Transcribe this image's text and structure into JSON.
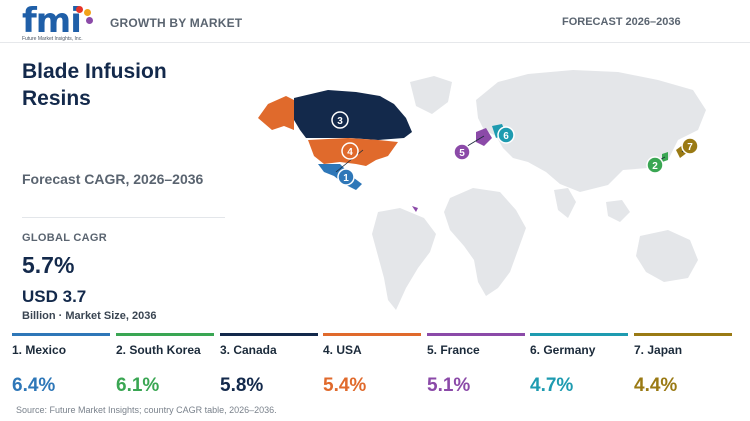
{
  "header": {
    "logo_text": "fmi",
    "logo_sub": "Future Market Insights, Inc.",
    "left": "GROWTH BY MARKET",
    "right": "FORECAST 2026–2036"
  },
  "title": "Blade Infusion Resins",
  "subtitle": "Forecast CAGR, 2026–2036",
  "global_cagr": {
    "label": "GLOBAL CAGR",
    "value": "5.7%"
  },
  "market_size": {
    "value": "USD 3.7",
    "label": "Billion · Market Size, 2036"
  },
  "countries": [
    {
      "rank": "1",
      "name": "1. Mexico",
      "cagr": "6.4%",
      "color": "#2e77b8"
    },
    {
      "rank": "2",
      "name": "2. South Korea",
      "cagr": "6.1%",
      "color": "#3aa653"
    },
    {
      "rank": "3",
      "name": "3. Canada",
      "cagr": "5.8%",
      "color": "#13294b"
    },
    {
      "rank": "4",
      "name": "4. USA",
      "cagr": "5.4%",
      "color": "#e06a2c"
    },
    {
      "rank": "5",
      "name": "5. France",
      "cagr": "5.1%",
      "color": "#8b4aa8"
    },
    {
      "rank": "6",
      "name": "6. Germany",
      "cagr": "4.7%",
      "color": "#1e9bb0"
    },
    {
      "rank": "7",
      "name": "7. Japan",
      "cagr": "4.4%",
      "color": "#9a7a14"
    }
  ],
  "source": "Source: Future Market Insights; country CAGR table, 2026–2036."
}
